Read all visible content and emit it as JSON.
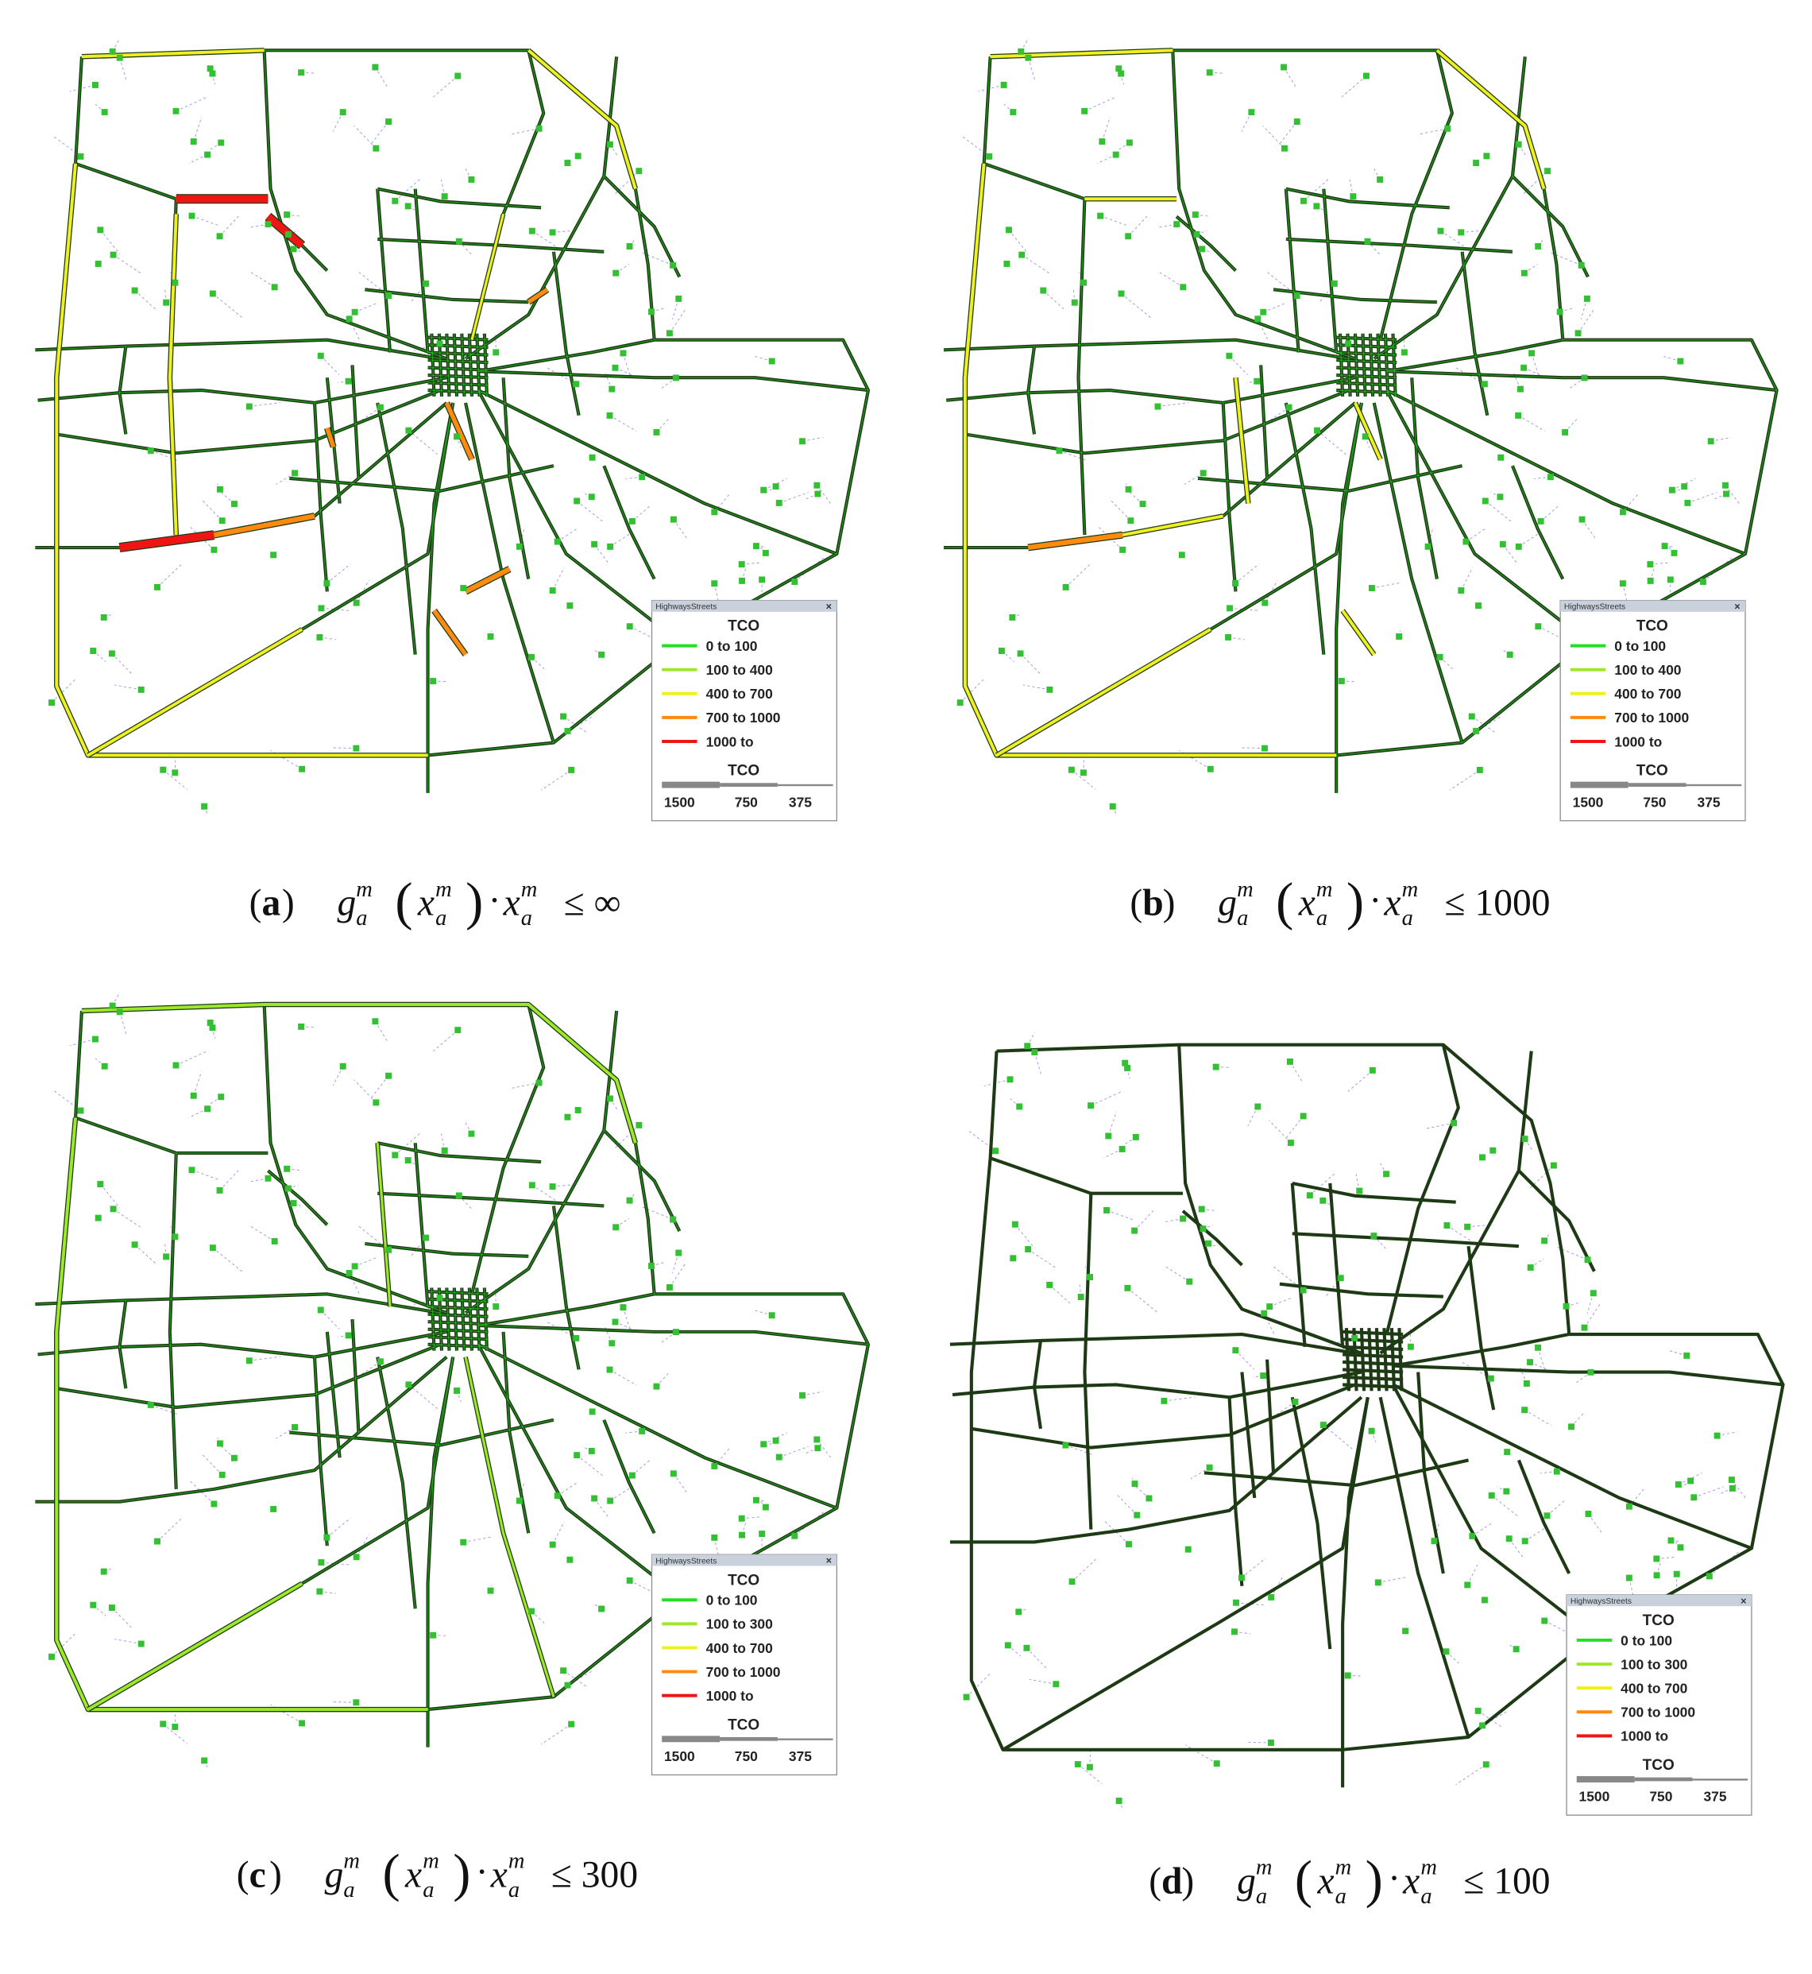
{
  "figure": {
    "expression": {
      "g": "g",
      "x": "x",
      "sub": "a",
      "sup": "m",
      "open": "(",
      "close": ")",
      "dot": "·",
      "le": "≤",
      "lparen": "(",
      "rparen": ")"
    },
    "panels": [
      {
        "label": "a",
        "bound": "∞",
        "legend": {
          "title": "HighwaysStreets",
          "close": "×",
          "heading": "TCO",
          "items": [
            {
              "label": "0 to 100",
              "color": "#22e022"
            },
            {
              "label": "100 to 400",
              "color": "#9ee82a"
            },
            {
              "label": "400 to 700",
              "color": "#f0f020"
            },
            {
              "label": "700 to 1000",
              "color": "#ff8a10"
            },
            {
              "label": "1000 to",
              "color": "#ee1515"
            }
          ],
          "footer": "TCO",
          "scale": [
            1500,
            750,
            375
          ]
        }
      },
      {
        "label": "b",
        "bound": "1000",
        "legend": {
          "title": "HighwaysStreets",
          "close": "×",
          "heading": "TCO",
          "items": [
            {
              "label": "0 to 100",
              "color": "#22e022"
            },
            {
              "label": "100 to 400",
              "color": "#9ee82a"
            },
            {
              "label": "400 to 700",
              "color": "#f0f020"
            },
            {
              "label": "700 to 1000",
              "color": "#ff8a10"
            },
            {
              "label": "1000 to",
              "color": "#ee1515"
            }
          ],
          "footer": "TCO",
          "scale": [
            1500,
            750,
            375
          ]
        }
      },
      {
        "label": "c",
        "bound": "300",
        "legend": {
          "title": "HighwaysStreets",
          "close": "×",
          "heading": "TCO",
          "items": [
            {
              "label": "0 to 100",
              "color": "#22e022"
            },
            {
              "label": "100 to 300",
              "color": "#9ee82a"
            },
            {
              "label": "400 to 700",
              "color": "#f0f020"
            },
            {
              "label": "700 to 1000",
              "color": "#ff8a10"
            },
            {
              "label": "1000 to",
              "color": "#ee1515"
            }
          ],
          "footer": "TCO",
          "scale": [
            1500,
            750,
            375
          ]
        }
      },
      {
        "label": "d",
        "bound": "100",
        "legend": {
          "title": "HighwaysStreets",
          "close": "×",
          "heading": "TCO",
          "items": [
            {
              "label": "0 to 100",
              "color": "#22e022"
            },
            {
              "label": "100 to 300",
              "color": "#9ee82a"
            },
            {
              "label": "400 to 700",
              "color": "#f0f020"
            },
            {
              "label": "700 to 1000",
              "color": "#ff8a10"
            },
            {
              "label": "1000 to",
              "color": "#ee1515"
            }
          ],
          "footer": "TCO",
          "scale": [
            1500,
            750,
            375
          ]
        }
      }
    ]
  }
}
